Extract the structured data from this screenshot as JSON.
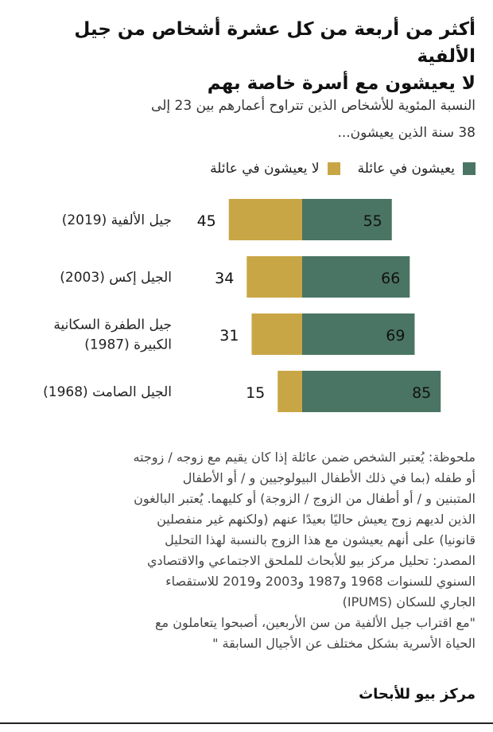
{
  "header": {
    "title_line1": "أكثر من أربعة من كل عشرة أشخاص من جيل الألفية",
    "title_line2": "لا يعيشون مع أسرة خاصة بهم",
    "subtitle_line1": "النسبة المئوية للأشخاص الذين تتراوح أعمارهم بين 23 إلى",
    "subtitle_line2": "38 سنة الذين يعيشون..."
  },
  "colors": {
    "living_with_family": "#4a7564",
    "not_living_with_family": "#c9a645"
  },
  "chart_data": {
    "type": "bar",
    "orientation": "horizontal",
    "stacked": true,
    "categories": [
      [
        "جيل الألفية (2019)"
      ],
      [
        "الجيل إكس (2003)"
      ],
      [
        "جيل الطفرة السكانية",
        "الكبيرة (1987)"
      ],
      [
        "الجيل الصامت (1968)"
      ]
    ],
    "series": [
      {
        "name": "يعيشون في عائلة",
        "values": [
          55,
          66,
          69,
          85
        ]
      },
      {
        "name": "لا يعيشون في عائلة",
        "values": [
          45,
          34,
          31,
          15
        ]
      }
    ],
    "title": "أكثر من أربعة من كل عشرة أشخاص من جيل الألفية لا يعيشون مع أسرة خاصة بهم",
    "xlabel": "",
    "ylabel": "",
    "xlim": [
      0,
      100
    ],
    "grid": false,
    "legend_position": "top"
  },
  "notes": {
    "note_lines": [
      "ملحوظة: يُعتبر الشخص ضمن عائلة إذا كان يقيم مع زوجه / زوجته",
      "أو طفله (بما في ذلك الأطفال البيولوجيين و / أو الأطفال",
      "المتبنين و / أو أطفال من الزوج / الزوجة) أو كليهما. يُعتبر البالغون",
      "الذين لديهم زوج يعيش حاليًا بعيدًا عنهم (ولكنهم غير منفصلين",
      "قانونيا) على أنهم يعيشون مع هذا الزوج بالنسبة لهذا التحليل"
    ],
    "source_lines": [
      "المصدر: تحليل مركز بيو للأبحاث للملحق الاجتماعي والاقتصادي",
      "السنوي للسنوات 1968 و1987 و2003 و2019 للاستقصاء",
      "الجاري للسكان (IPUMS)"
    ],
    "quote_lines": [
      "\"مع اقتراب جيل الألفية من سن الأربعين، أصبحوا يتعاملون مع",
      "الحياة الأسرية بشكل مختلف عن الأجيال السابقة \""
    ]
  },
  "footer": {
    "logo_text": "مركز بيو للأبحاث"
  }
}
